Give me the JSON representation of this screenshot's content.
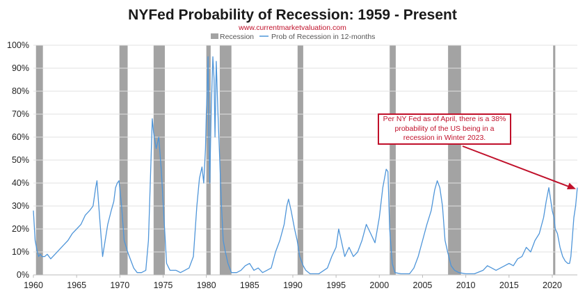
{
  "chart_data": {
    "type": "line",
    "title": "NYFed Probability of Recession: 1959 - Present",
    "subtitle": "www.currentmarketvaluation.com",
    "legend": {
      "placement": "top-center",
      "items": [
        {
          "name": "Recession",
          "kind": "bar",
          "color": "#a3a3a3"
        },
        {
          "name": "Prob of Recession in 12-months",
          "kind": "line",
          "color": "#4e95d9"
        }
      ]
    },
    "xlim": [
      1960,
      2022.9
    ],
    "ylim": [
      0,
      100
    ],
    "x_ticks": [
      1960,
      1965,
      1970,
      1975,
      1980,
      1985,
      1990,
      1995,
      2000,
      2005,
      2010,
      2015,
      2020
    ],
    "y_ticks": [
      "0%",
      "10%",
      "20%",
      "30%",
      "40%",
      "50%",
      "60%",
      "70%",
      "80%",
      "90%",
      "100%"
    ],
    "grid": "horizontal",
    "recessions": [
      {
        "start": 1960.3,
        "end": 1961.1
      },
      {
        "start": 1969.95,
        "end": 1970.9
      },
      {
        "start": 1973.9,
        "end": 1975.2
      },
      {
        "start": 1980.0,
        "end": 1980.5
      },
      {
        "start": 1981.55,
        "end": 1982.9
      },
      {
        "start": 1990.55,
        "end": 1991.2
      },
      {
        "start": 2001.2,
        "end": 2001.9
      },
      {
        "start": 2007.95,
        "end": 2009.45
      },
      {
        "start": 2020.1,
        "end": 2020.35
      }
    ],
    "series": [
      {
        "name": "Prob of Recession in 12-months",
        "color": "#4e95d9",
        "points": [
          [
            1960.0,
            28
          ],
          [
            1960.2,
            15
          ],
          [
            1960.4,
            11
          ],
          [
            1960.6,
            8
          ],
          [
            1960.8,
            9
          ],
          [
            1961.0,
            8
          ],
          [
            1961.3,
            8
          ],
          [
            1961.6,
            9
          ],
          [
            1962.0,
            7
          ],
          [
            1962.5,
            9
          ],
          [
            1963.0,
            11
          ],
          [
            1963.5,
            13
          ],
          [
            1964.0,
            15
          ],
          [
            1964.5,
            18
          ],
          [
            1965.0,
            20
          ],
          [
            1965.5,
            22
          ],
          [
            1966.0,
            26
          ],
          [
            1966.5,
            28
          ],
          [
            1966.9,
            30
          ],
          [
            1967.2,
            38
          ],
          [
            1967.35,
            41
          ],
          [
            1967.6,
            28
          ],
          [
            1968.0,
            8
          ],
          [
            1968.3,
            15
          ],
          [
            1968.6,
            22
          ],
          [
            1969.0,
            28
          ],
          [
            1969.3,
            32
          ],
          [
            1969.5,
            38
          ],
          [
            1969.7,
            40
          ],
          [
            1969.9,
            41
          ],
          [
            1970.2,
            30
          ],
          [
            1970.5,
            15
          ],
          [
            1970.9,
            10
          ],
          [
            1971.2,
            7
          ],
          [
            1971.6,
            3
          ],
          [
            1972.0,
            1
          ],
          [
            1972.5,
            1
          ],
          [
            1973.0,
            2
          ],
          [
            1973.3,
            15
          ],
          [
            1973.6,
            50
          ],
          [
            1973.75,
            68
          ],
          [
            1973.9,
            62
          ],
          [
            1974.2,
            55
          ],
          [
            1974.5,
            60
          ],
          [
            1974.8,
            45
          ],
          [
            1975.1,
            25
          ],
          [
            1975.4,
            5
          ],
          [
            1975.8,
            2
          ],
          [
            1976.5,
            2
          ],
          [
            1977.0,
            1
          ],
          [
            1977.5,
            2
          ],
          [
            1978.0,
            3
          ],
          [
            1978.5,
            8
          ],
          [
            1978.9,
            30
          ],
          [
            1979.2,
            42
          ],
          [
            1979.5,
            47
          ],
          [
            1979.7,
            40
          ],
          [
            1979.9,
            55
          ],
          [
            1980.0,
            70
          ],
          [
            1980.1,
            80
          ],
          [
            1980.2,
            95
          ],
          [
            1980.3,
            60
          ],
          [
            1980.4,
            40
          ],
          [
            1980.55,
            70
          ],
          [
            1980.75,
            95
          ],
          [
            1980.9,
            85
          ],
          [
            1981.0,
            60
          ],
          [
            1981.15,
            93
          ],
          [
            1981.35,
            70
          ],
          [
            1981.55,
            50
          ],
          [
            1981.75,
            30
          ],
          [
            1981.95,
            15
          ],
          [
            1982.2,
            10
          ],
          [
            1982.5,
            5
          ],
          [
            1982.9,
            1
          ],
          [
            1983.5,
            1
          ],
          [
            1984.0,
            2
          ],
          [
            1984.5,
            4
          ],
          [
            1985.0,
            5
          ],
          [
            1985.5,
            2
          ],
          [
            1986.0,
            3
          ],
          [
            1986.5,
            1
          ],
          [
            1987.0,
            2
          ],
          [
            1987.5,
            3
          ],
          [
            1988.0,
            10
          ],
          [
            1988.5,
            15
          ],
          [
            1989.0,
            22
          ],
          [
            1989.3,
            30
          ],
          [
            1989.5,
            33
          ],
          [
            1989.8,
            28
          ],
          [
            1990.2,
            20
          ],
          [
            1990.5,
            15
          ],
          [
            1990.8,
            8
          ],
          [
            1991.2,
            4
          ],
          [
            1991.5,
            2
          ],
          [
            1992.0,
            0.5
          ],
          [
            1993.0,
            0.5
          ],
          [
            1994.0,
            3
          ],
          [
            1994.5,
            8
          ],
          [
            1995.0,
            12
          ],
          [
            1995.3,
            20
          ],
          [
            1995.6,
            15
          ],
          [
            1996.0,
            8
          ],
          [
            1996.5,
            12
          ],
          [
            1997.0,
            8
          ],
          [
            1997.5,
            10
          ],
          [
            1998.0,
            15
          ],
          [
            1998.5,
            22
          ],
          [
            1999.0,
            18
          ],
          [
            1999.5,
            14
          ],
          [
            2000.0,
            25
          ],
          [
            2000.4,
            38
          ],
          [
            2000.8,
            46
          ],
          [
            2001.0,
            45
          ],
          [
            2001.2,
            20
          ],
          [
            2001.5,
            5
          ],
          [
            2001.8,
            1
          ],
          [
            2002.5,
            0.5
          ],
          [
            2003.5,
            0.5
          ],
          [
            2004.0,
            3
          ],
          [
            2004.5,
            8
          ],
          [
            2005.0,
            15
          ],
          [
            2005.5,
            22
          ],
          [
            2006.0,
            28
          ],
          [
            2006.4,
            37
          ],
          [
            2006.7,
            41
          ],
          [
            2007.0,
            38
          ],
          [
            2007.3,
            30
          ],
          [
            2007.6,
            15
          ],
          [
            2007.9,
            10
          ],
          [
            2008.3,
            4
          ],
          [
            2008.7,
            2
          ],
          [
            2009.2,
            1
          ],
          [
            2010.0,
            0.5
          ],
          [
            2011.0,
            0.5
          ],
          [
            2012.0,
            2
          ],
          [
            2012.5,
            4
          ],
          [
            2013.0,
            3
          ],
          [
            2013.5,
            2
          ],
          [
            2014.0,
            3
          ],
          [
            2014.5,
            4
          ],
          [
            2015.0,
            5
          ],
          [
            2015.5,
            4
          ],
          [
            2016.0,
            7
          ],
          [
            2016.5,
            8
          ],
          [
            2017.0,
            12
          ],
          [
            2017.5,
            10
          ],
          [
            2018.0,
            15
          ],
          [
            2018.5,
            18
          ],
          [
            2019.0,
            25
          ],
          [
            2019.3,
            32
          ],
          [
            2019.6,
            38
          ],
          [
            2019.8,
            33
          ],
          [
            2020.0,
            28
          ],
          [
            2020.2,
            25
          ],
          [
            2020.35,
            20
          ],
          [
            2020.6,
            18
          ],
          [
            2020.9,
            12
          ],
          [
            2021.2,
            8
          ],
          [
            2021.5,
            6
          ],
          [
            2021.8,
            5
          ],
          [
            2022.0,
            5
          ],
          [
            2022.15,
            8
          ],
          [
            2022.3,
            15
          ],
          [
            2022.5,
            25
          ],
          [
            2022.7,
            30
          ],
          [
            2022.9,
            38
          ]
        ]
      }
    ],
    "annotation": {
      "text": "Per NY Fed as of April, there is a 38% probability of the US being in a recession in Winter 2023.",
      "color": "#c0102a",
      "arrow_to": [
        2022.9,
        38
      ]
    }
  }
}
